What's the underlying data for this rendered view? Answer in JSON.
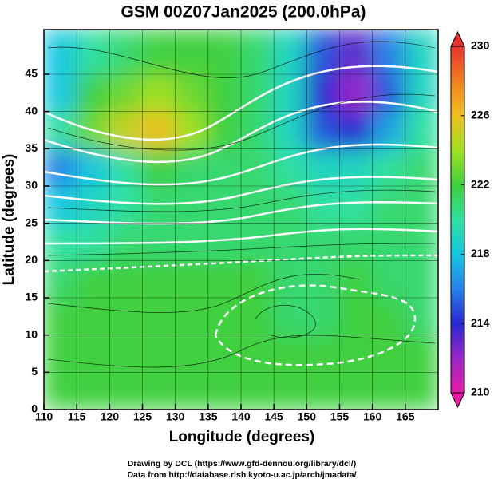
{
  "chart_data": {
    "type": "field",
    "title": "GSM 00Z07Jan2025 (200.0hPa)",
    "x_label": "Longitude (degrees)",
    "y_label": "Latitude  (degrees)",
    "xlim": [
      110,
      170
    ],
    "ylim": [
      0,
      51
    ],
    "xticks": [
      110,
      115,
      120,
      125,
      130,
      135,
      140,
      145,
      150,
      155,
      160,
      165
    ],
    "yticks": [
      0,
      5,
      10,
      15,
      20,
      25,
      30,
      35,
      40,
      45
    ],
    "grid": true,
    "field": {
      "lon_edges": [
        110,
        115,
        120,
        125,
        130,
        135,
        140,
        145,
        150,
        155,
        160,
        165,
        170
      ],
      "lat_edges": [
        0,
        5,
        10,
        15,
        20,
        25,
        30,
        35,
        40,
        45,
        51
      ],
      "values": [
        [
          222,
          222,
          222,
          222,
          222,
          222,
          222,
          222,
          222,
          222,
          222,
          222
        ],
        [
          222,
          222,
          222,
          222,
          222,
          222,
          222,
          222,
          222,
          222,
          222,
          222
        ],
        [
          222,
          222,
          222,
          222,
          222,
          222,
          222,
          221,
          221,
          222,
          222,
          221
        ],
        [
          221,
          222,
          222,
          222,
          222,
          222,
          222,
          221,
          221,
          222,
          221,
          221
        ],
        [
          220,
          220,
          221,
          221,
          221,
          221,
          221,
          221,
          221,
          221,
          221,
          221
        ],
        [
          218,
          219,
          220,
          221,
          221,
          221,
          221,
          221,
          220,
          220,
          221,
          221
        ],
        [
          216,
          218,
          220,
          222,
          221,
          221,
          221,
          220,
          219,
          219,
          220,
          221
        ],
        [
          220,
          223,
          225,
          226,
          224,
          222,
          221,
          219,
          215,
          214,
          217,
          220
        ],
        [
          218,
          222,
          223,
          224,
          223,
          222,
          221,
          219,
          214,
          212,
          215,
          219
        ],
        [
          218,
          220,
          221,
          222,
          222,
          222,
          221,
          219,
          215,
          213,
          216,
          219
        ]
      ]
    },
    "colorbar": {
      "lim": [
        210,
        230
      ],
      "ticks": [
        210,
        214,
        218,
        222,
        226,
        230
      ],
      "colors": [
        "#e81ca8",
        "#9a28c8",
        "#2828d0",
        "#2880e8",
        "#14c8e0",
        "#30e0a0",
        "#40d040",
        "#a0e020",
        "#f0c020",
        "#f08020",
        "#e83030"
      ]
    },
    "credits": [
      "Drawing by DCL (https://www.gfd-dennou.org/library/dcl/)",
      "Data from http://database.rish.kyoto-u.ac.jp/arch/jmadata/"
    ]
  }
}
